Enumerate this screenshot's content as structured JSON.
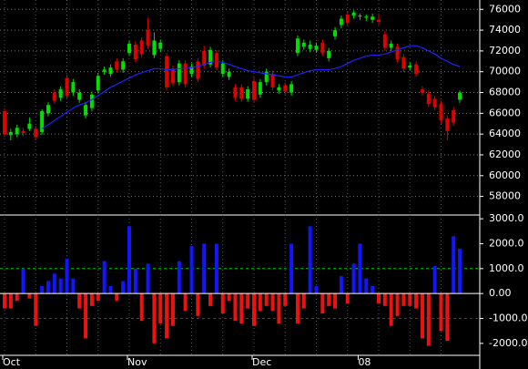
{
  "chart_data": [
    {
      "type": "candlestick",
      "open": [
        66200,
        63900,
        64000,
        64300,
        64500,
        64500,
        64200,
        66000,
        68000,
        67500,
        69400,
        68000,
        67300,
        65800,
        66500,
        68200,
        70000,
        69800,
        71000,
        70200,
        71800,
        72600,
        73000,
        74000,
        71600,
        72200,
        71500,
        70300,
        69000,
        70800,
        69800,
        71000,
        72000,
        70700,
        71800,
        69800,
        69500,
        68500,
        68500,
        67400,
        69100,
        67800,
        69000,
        69800,
        68200,
        68700,
        68000,
        71800,
        72400,
        72200,
        72100,
        72800,
        71300,
        73400,
        74500,
        75500,
        75400,
        75300,
        75200,
        75000,
        75000,
        73600,
        72300,
        72400,
        71400,
        70400,
        70700,
        68300,
        67900,
        67400,
        66900,
        65500,
        66300,
        67300
      ],
      "high": [
        66500,
        64500,
        64900,
        64600,
        65600,
        64800,
        66400,
        67100,
        68300,
        68600,
        69700,
        69300,
        68300,
        67100,
        68100,
        69900,
        70500,
        70700,
        71300,
        71300,
        73000,
        72900,
        73300,
        75200,
        73800,
        73100,
        71800,
        70600,
        71100,
        71100,
        70800,
        71300,
        72500,
        72400,
        72100,
        71100,
        70300,
        68800,
        68800,
        68600,
        69400,
        69300,
        70300,
        70100,
        68800,
        69000,
        69100,
        73500,
        73100,
        73000,
        72800,
        73100,
        72300,
        74300,
        75400,
        75800,
        75900,
        75600,
        75500,
        75600,
        75600,
        73900,
        73000,
        72700,
        71700,
        70900,
        71000,
        68600,
        68200,
        67700,
        67200,
        65800,
        66600,
        68200
      ],
      "low": [
        63700,
        63400,
        63700,
        63800,
        64300,
        63400,
        63900,
        65700,
        66900,
        67200,
        67400,
        67700,
        67000,
        65500,
        66200,
        67900,
        69700,
        69500,
        69900,
        69900,
        71500,
        70900,
        71400,
        72200,
        71300,
        71900,
        68200,
        68600,
        68700,
        68500,
        69500,
        69000,
        70300,
        70400,
        70100,
        69500,
        69200,
        67200,
        67100,
        67100,
        67000,
        67500,
        68700,
        68200,
        67900,
        67800,
        67700,
        71500,
        72100,
        71900,
        71800,
        71500,
        71000,
        73100,
        74200,
        74400,
        75100,
        75000,
        74900,
        74700,
        74500,
        72000,
        72000,
        70900,
        70000,
        70100,
        69500,
        67700,
        66600,
        66300,
        65000,
        63400,
        64800,
        67000
      ],
      "close": [
        64000,
        64200,
        64600,
        64100,
        65000,
        63700,
        66200,
        66800,
        67200,
        68300,
        67700,
        69000,
        68000,
        66800,
        67800,
        69600,
        70200,
        70400,
        70200,
        71000,
        72700,
        71200,
        71700,
        72500,
        73000,
        72800,
        68500,
        68900,
        70800,
        68800,
        70500,
        69300,
        70600,
        72100,
        70400,
        70800,
        70000,
        67500,
        67400,
        68300,
        67300,
        69000,
        70000,
        68500,
        68500,
        68100,
        68800,
        73200,
        72800,
        72600,
        72500,
        71800,
        72000,
        74000,
        75100,
        74700,
        75700,
        75400,
        75300,
        75300,
        74800,
        72300,
        72700,
        71200,
        70300,
        70600,
        69800,
        68000,
        66900,
        66600,
        65300,
        64300,
        65100,
        68000
      ],
      "up_color": "#00e000",
      "down_color": "#e00000",
      "moving_average": {
        "color": "#2020ff",
        "values": [
          null,
          null,
          null,
          null,
          null,
          null,
          64500,
          64900,
          65300,
          65700,
          66100,
          66500,
          66800,
          67000,
          67300,
          67700,
          68100,
          68500,
          68800,
          69100,
          69400,
          69700,
          69900,
          70100,
          70300,
          70300,
          70200,
          70200,
          70300,
          70300,
          70400,
          70500,
          70700,
          70900,
          71000,
          70900,
          70700,
          70500,
          70300,
          70100,
          70000,
          69900,
          69800,
          69700,
          69600,
          69500,
          69500,
          69700,
          69900,
          70100,
          70200,
          70200,
          70200,
          70300,
          70500,
          70800,
          71100,
          71300,
          71500,
          71600,
          71600,
          71700,
          71900,
          72100,
          72300,
          72500,
          72500,
          72300,
          72000,
          71700,
          71300,
          71000,
          70700,
          70500
        ]
      },
      "ylim": [
        56300,
        76900
      ],
      "yticks": [
        58000,
        60000,
        62000,
        64000,
        66000,
        68000,
        70000,
        72000,
        74000,
        76000
      ],
      "grid": true
    },
    {
      "type": "bar",
      "categories": [
        "Oct",
        null,
        null,
        null,
        null,
        null,
        null,
        null,
        null,
        null,
        null,
        null,
        null,
        null,
        null,
        null,
        null,
        null,
        null,
        null,
        "Nov",
        null,
        null,
        null,
        null,
        null,
        null,
        null,
        null,
        null,
        null,
        null,
        null,
        null,
        null,
        null,
        null,
        null,
        null,
        null,
        "Dec",
        null,
        null,
        null,
        null,
        null,
        null,
        null,
        null,
        null,
        null,
        null,
        null,
        null,
        null,
        null,
        null,
        "08",
        null,
        null,
        null,
        null,
        null,
        null,
        null,
        null,
        null,
        null,
        null,
        null,
        null,
        null,
        null,
        null
      ],
      "values": [
        -600,
        -600,
        -300,
        1000,
        -200,
        -1300,
        300,
        500,
        800,
        600,
        1400,
        600,
        -600,
        -1800,
        -500,
        -300,
        1300,
        300,
        -300,
        500,
        2700,
        1000,
        -1100,
        1200,
        -2000,
        -1200,
        -1800,
        -1300,
        1300,
        -700,
        1900,
        -900,
        2000,
        -500,
        2000,
        -800,
        -300,
        -1100,
        -1200,
        -600,
        -1300,
        -700,
        -500,
        -700,
        -1200,
        -500,
        2000,
        -1200,
        -600,
        2700,
        300,
        -800,
        -500,
        -600,
        700,
        -400,
        1200,
        2000,
        600,
        300,
        -400,
        -500,
        -1300,
        -900,
        -500,
        -500,
        -600,
        -1800,
        -2100,
        1100,
        -1500,
        -1900,
        2300,
        1800
      ],
      "positive_color": "#1414ff",
      "negative_color": "#ee1111",
      "reference_lines": [
        {
          "value": 1000,
          "color": "#00c000"
        },
        {
          "value": -1000,
          "color": "#e00000"
        }
      ],
      "ylim": [
        -2480,
        3150
      ],
      "yticks": [
        {
          "value": 3000,
          "label": "3000.0"
        },
        {
          "value": 2000,
          "label": "2000.0"
        },
        {
          "value": 1000,
          "label": "1000.0"
        },
        {
          "value": 0,
          "label": "0.00"
        },
        {
          "value": -1000,
          "label": "-1000.0"
        },
        {
          "value": -2000,
          "label": "-2000.0"
        }
      ]
    }
  ]
}
